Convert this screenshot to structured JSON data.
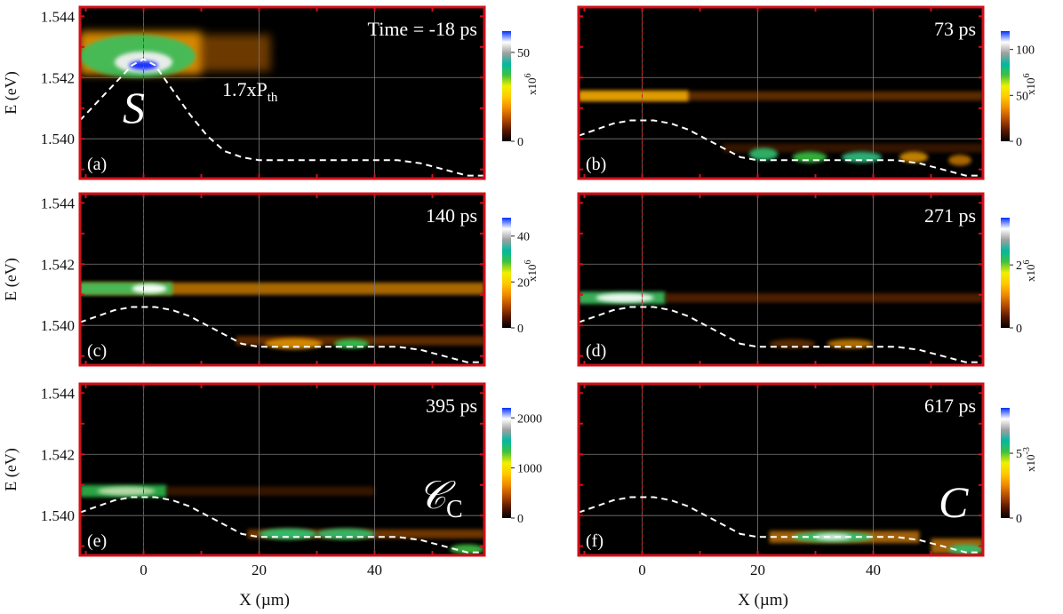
{
  "colors": {
    "frame": "#d0101a",
    "plot_bg": "#000000",
    "grid": "#7a7a7a",
    "dashed_curve": "#ffffff",
    "colormap": [
      "#000000",
      "#5a1800",
      "#b34a00",
      "#f08a00",
      "#ffc800",
      "#f0f000",
      "#40c040",
      "#00b8a0",
      "#a0a0a0",
      "#ffffff",
      "#0030ff"
    ]
  },
  "chart_data": [
    {
      "id": "a",
      "type": "heatmap",
      "panel_label": "(a)",
      "time_label": "Time = -18 ps",
      "annotation": "S",
      "power_label_main": "1.7xP",
      "power_label_sub": "th",
      "ylabel": "E (eV)",
      "xlabel": "",
      "xlim": [
        -11,
        59
      ],
      "ylim": [
        1.5387,
        1.5443
      ],
      "yticks": [
        "1.540",
        "1.542",
        "1.544"
      ],
      "xticks": [],
      "colorbar": {
        "ticks": [
          "0",
          "50"
        ],
        "tick_values": [
          0,
          50
        ],
        "max": 62,
        "exponent_label": "x10",
        "exponent_power": "6"
      }
    },
    {
      "id": "b",
      "type": "heatmap",
      "panel_label": "(b)",
      "time_label": "73 ps",
      "ylabel": "",
      "xlabel": "",
      "xlim": [
        -11,
        59
      ],
      "ylim": [
        1.5387,
        1.5443
      ],
      "yticks": [],
      "xticks": [],
      "colorbar": {
        "ticks": [
          "0",
          "50",
          "100"
        ],
        "tick_values": [
          0,
          50,
          100
        ],
        "max": 120,
        "exponent_label": "x10",
        "exponent_power": "6"
      }
    },
    {
      "id": "c",
      "type": "heatmap",
      "panel_label": "(c)",
      "time_label": "140 ps",
      "ylabel": "E (eV)",
      "xlabel": "",
      "xlim": [
        -11,
        59
      ],
      "ylim": [
        1.5387,
        1.5443
      ],
      "yticks": [
        "1.540",
        "1.542",
        "1.544"
      ],
      "xticks": [],
      "colorbar": {
        "ticks": [
          "0",
          "20",
          "40"
        ],
        "tick_values": [
          0,
          20,
          40
        ],
        "max": 48,
        "exponent_label": "x10",
        "exponent_power": "6"
      }
    },
    {
      "id": "d",
      "type": "heatmap",
      "panel_label": "(d)",
      "time_label": "271 ps",
      "ylabel": "",
      "xlabel": "",
      "xlim": [
        -11,
        59
      ],
      "ylim": [
        1.5387,
        1.5443
      ],
      "yticks": [],
      "xticks": [],
      "colorbar": {
        "ticks": [
          "0",
          "2"
        ],
        "tick_values": [
          0,
          2
        ],
        "max": 3.5,
        "exponent_label": "x10",
        "exponent_power": "6"
      }
    },
    {
      "id": "e",
      "type": "heatmap",
      "panel_label": "(e)",
      "time_label": "395 ps",
      "annotation_main": "𝒞",
      "annotation_sub": "C",
      "ylabel": "E (eV)",
      "xlabel": "X (µm)",
      "xlim": [
        -11,
        59
      ],
      "ylim": [
        1.5387,
        1.5443
      ],
      "yticks": [
        "1.540",
        "1.542",
        "1.544"
      ],
      "xticks": [
        "0",
        "20",
        "40"
      ],
      "colorbar": {
        "ticks": [
          "0",
          "1000",
          "2000"
        ],
        "tick_values": [
          0,
          1000,
          2000
        ],
        "max": 2200,
        "exponent_label": "",
        "exponent_power": ""
      }
    },
    {
      "id": "f",
      "type": "heatmap",
      "panel_label": "(f)",
      "time_label": "617 ps",
      "annotation": "C",
      "ylabel": "",
      "xlabel": "X (µm)",
      "xlim": [
        -11,
        59
      ],
      "ylim": [
        1.5387,
        1.5443
      ],
      "yticks": [],
      "xticks": [
        "0",
        "20",
        "40"
      ],
      "colorbar": {
        "ticks": [
          "0",
          "5"
        ],
        "tick_values": [
          0,
          5
        ],
        "max": 8.5,
        "exponent_label": "x10",
        "exponent_power": "-3"
      }
    }
  ]
}
